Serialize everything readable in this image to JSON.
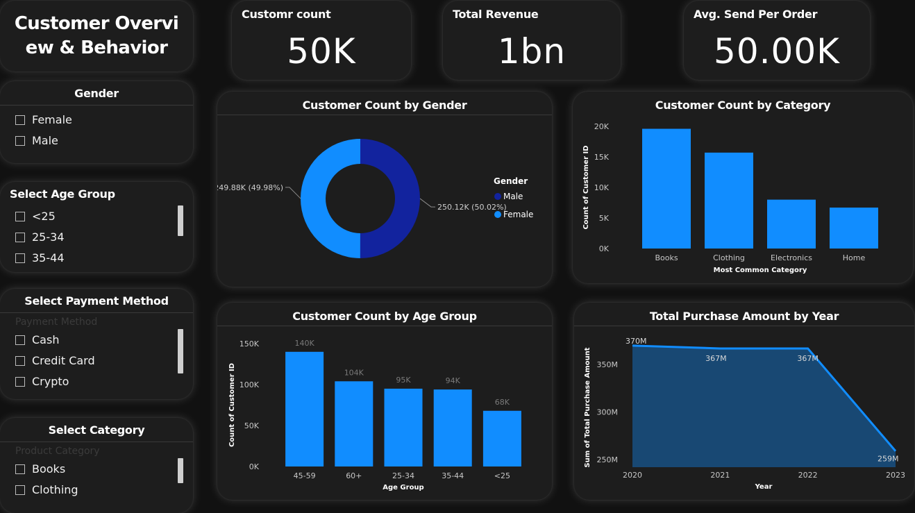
{
  "dashboard": {
    "title": "Customer Overview & Behavior"
  },
  "kpis": [
    {
      "label": "Customr count",
      "value": "50K"
    },
    {
      "label": "Total Revenue",
      "value": "1bn"
    },
    {
      "label": "Avg. Send Per Order",
      "value": "50.00K"
    }
  ],
  "slicers": {
    "gender": {
      "title": "Gender",
      "options": [
        "Female",
        "Male"
      ]
    },
    "age_group": {
      "title": "Select Age Group",
      "options": [
        "<25",
        "25-34",
        "35-44"
      ]
    },
    "payment": {
      "title": "Select Payment Method",
      "field": "Payment Method",
      "options": [
        "Cash",
        "Credit Card",
        "Crypto"
      ]
    },
    "category": {
      "title": "Select Category",
      "field": "Product Category",
      "options": [
        "Books",
        "Clothing"
      ]
    }
  },
  "chart_data": [
    {
      "id": "gender",
      "type": "pie",
      "title": "Customer Count by Gender",
      "legend_title": "Gender",
      "legend_position": "right",
      "slices": [
        {
          "name": "Male",
          "value": 250.12,
          "label": "250.12K (50.02%)",
          "color": "#12239e"
        },
        {
          "name": "Female",
          "value": 249.88,
          "label": "249.88K (49.98%)",
          "color": "#118dff"
        }
      ]
    },
    {
      "id": "category",
      "type": "bar",
      "title": "Customer Count by Category",
      "xlabel": "Most Common Category",
      "ylabel": "Count of Customer ID",
      "categories": [
        "Books",
        "Clothing",
        "Electronics",
        "Home"
      ],
      "values": [
        19600,
        15700,
        8000,
        6700
      ],
      "ylim": [
        0,
        20000
      ],
      "ticks": [
        0,
        5000,
        10000,
        15000,
        20000
      ],
      "tick_labels": [
        "0K",
        "5K",
        "10K",
        "15K",
        "20K"
      ],
      "color": "#118dff"
    },
    {
      "id": "age",
      "type": "bar",
      "title": "Customer Count by Age Group",
      "xlabel": "Age Group",
      "ylabel": "Count of Customer ID",
      "categories": [
        "45-59",
        "60+",
        "25-34",
        "35-44",
        "<25"
      ],
      "values": [
        140000,
        104000,
        95000,
        94000,
        68000
      ],
      "data_labels": [
        "140K",
        "104K",
        "95K",
        "94K",
        "68K"
      ],
      "ylim": [
        0,
        150000
      ],
      "ticks": [
        0,
        50000,
        100000,
        150000
      ],
      "tick_labels": [
        "0K",
        "50K",
        "100K",
        "150K"
      ],
      "color": "#118dff"
    },
    {
      "id": "year",
      "type": "area",
      "title": "Total Purchase Amount by Year",
      "xlabel": "Year",
      "ylabel": "Sum of Total Purchase Amount",
      "x": [
        "2020",
        "2021",
        "2022",
        "2023"
      ],
      "values": [
        370,
        367,
        367,
        259
      ],
      "data_labels": [
        "370M",
        "367M",
        "367M",
        "259M"
      ],
      "ylim": [
        242,
        375
      ],
      "ticks": [
        250,
        300,
        350
      ],
      "tick_labels": [
        "250M",
        "300M",
        "350M"
      ],
      "color": "#118dff"
    }
  ]
}
